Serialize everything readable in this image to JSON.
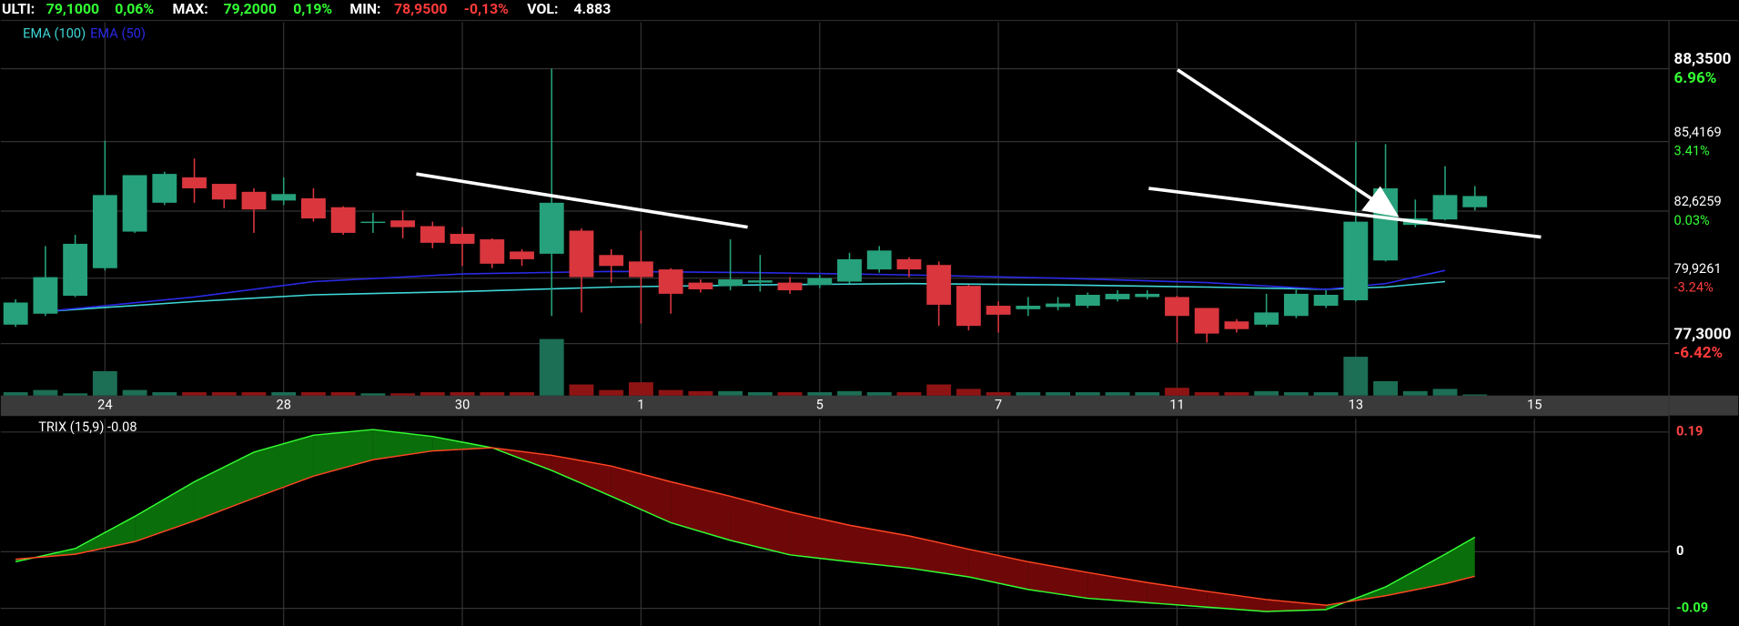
{
  "header": {
    "last_label": "ULTI:",
    "last": "79,1000",
    "last_change": "0,06%",
    "max_label": "MAX:",
    "max": "79,2000",
    "max_change": "0,19%",
    "min_label": "MIN:",
    "min": "78,9500",
    "min_change": "-0,13%",
    "vol_label": "VOL:",
    "vol": "4.883"
  },
  "chart_data": [
    {
      "type": "candlestick",
      "up_color": "#26a17b",
      "down_color": "#d9363e",
      "volume_up_color": "#1c6e55",
      "volume_down_color": "#8e1414",
      "open": [
        78.06,
        78.5,
        79.22,
        80.33,
        81.8,
        82.96,
        83.98,
        83.72,
        83.4,
        83.05,
        83.14,
        82.78,
        82.16,
        82.25,
        82.02,
        81.71,
        81.49,
        81.0,
        80.91,
        81.84,
        80.86,
        80.6,
        80.28,
        79.75,
        79.62,
        79.75,
        79.75,
        79.66,
        79.79,
        80.28,
        80.69,
        80.46,
        79.62,
        78.82,
        78.68,
        78.77,
        78.82,
        79.08,
        79.17,
        79.17,
        78.73,
        78.19,
        78.06,
        78.41,
        78.82,
        79.04,
        80.64,
        82.07,
        82.29,
        82.78
      ],
      "high": [
        79.08,
        81.22,
        81.67,
        85.45,
        84.07,
        84.21,
        84.74,
        83.72,
        83.54,
        83.98,
        83.54,
        82.82,
        82.56,
        82.65,
        82.2,
        81.98,
        81.53,
        81.09,
        88.35,
        81.93,
        81.09,
        81.84,
        80.33,
        79.88,
        81.49,
        80.86,
        79.97,
        80.06,
        80.95,
        81.22,
        80.77,
        80.6,
        79.66,
        78.99,
        79.17,
        79.17,
        79.35,
        79.44,
        79.44,
        79.22,
        78.73,
        78.28,
        79.3,
        79.53,
        79.44,
        85.41,
        85.32,
        83.09,
        84.43,
        83.63
      ],
      "low": [
        77.97,
        78.41,
        79.17,
        80.24,
        81.75,
        82.87,
        82.96,
        82.74,
        81.75,
        82.87,
        82.2,
        81.67,
        81.75,
        81.53,
        81.13,
        80.42,
        80.33,
        80.42,
        78.41,
        78.55,
        79.75,
        78.1,
        78.5,
        79.35,
        79.44,
        79.39,
        79.3,
        79.53,
        79.71,
        80.15,
        79.97,
        78.01,
        77.83,
        77.74,
        78.41,
        78.64,
        78.73,
        78.99,
        79.08,
        77.34,
        77.34,
        77.74,
        77.97,
        78.32,
        78.73,
        78.99,
        80.6,
        81.98,
        82.25,
        82.65
      ],
      "close": [
        78.95,
        79.97,
        81.31,
        83.27,
        84.07,
        84.12,
        83.54,
        83.09,
        82.69,
        83.31,
        82.33,
        81.75,
        82.2,
        81.98,
        81.35,
        81.31,
        80.51,
        80.69,
        82.96,
        79.97,
        80.42,
        79.97,
        79.3,
        79.48,
        79.88,
        79.84,
        79.44,
        79.93,
        80.69,
        81.04,
        80.28,
        78.86,
        78.01,
        78.46,
        78.82,
        78.91,
        79.26,
        79.3,
        79.3,
        78.41,
        77.7,
        77.88,
        78.55,
        79.3,
        79.26,
        82.2,
        83.54,
        82.33,
        83.27,
        83.23
      ],
      "volume": [
        3,
        5,
        2,
        22,
        5,
        3,
        3,
        3,
        3,
        3,
        3,
        3,
        2,
        2,
        3,
        3,
        3,
        3,
        51,
        10,
        5,
        12,
        5,
        4,
        4,
        3,
        3,
        3,
        4,
        3,
        3,
        10,
        6,
        3,
        3,
        3,
        3,
        3,
        3,
        7,
        3,
        3,
        4,
        3,
        3,
        35,
        13,
        4,
        6,
        1
      ],
      "vlim": [
        0,
        60
      ],
      "ema": [
        {
          "name": "EMA (100)",
          "color": "#3fd6d6",
          "x": [
            1,
            6,
            10,
            15,
            20,
            25,
            30,
            35,
            40,
            44,
            46,
            48
          ],
          "values": [
            78.59,
            78.99,
            79.26,
            79.39,
            79.57,
            79.66,
            79.71,
            79.66,
            79.57,
            79.48,
            79.57,
            79.79
          ]
        },
        {
          "name": "EMA (50)",
          "color": "#2a2ae8",
          "x": [
            1,
            6,
            10,
            15,
            20,
            25,
            30,
            35,
            40,
            44,
            46,
            48
          ],
          "values": [
            78.59,
            79.17,
            79.79,
            80.1,
            80.2,
            80.15,
            80.06,
            79.93,
            79.75,
            79.48,
            79.71,
            80.24
          ]
        }
      ],
      "xlim": [
        -0.5,
        55.5
      ],
      "xticks": [
        {
          "value": 3,
          "label": "24"
        },
        {
          "value": 9,
          "label": "28"
        },
        {
          "value": 15,
          "label": "30"
        },
        {
          "value": 21,
          "label": "1"
        },
        {
          "value": 27,
          "label": "5"
        },
        {
          "value": 33,
          "label": "7"
        },
        {
          "value": 39,
          "label": "11"
        },
        {
          "value": 45,
          "label": "13"
        },
        {
          "value": 51,
          "label": "15"
        }
      ],
      "ylim": [
        75.21,
        90.22
      ],
      "yticks": [
        {
          "value": 88.35,
          "label": "88,3500"
        },
        {
          "value": 85.4169,
          "label": "85,4169"
        },
        {
          "value": 82.6259,
          "label": "82,6259"
        },
        {
          "value": 79.9261,
          "label": "79,9261"
        },
        {
          "value": 77.3,
          "label": "77,3000"
        }
      ],
      "ytick_changes": [
        "6.96%",
        "3.41%",
        "0.03%",
        "-3.24%",
        "-6.42%"
      ],
      "ytick_change_colors": [
        "#33ff33",
        "#33ff33",
        "#33ff33",
        "#ff3b3b",
        "#ff3b3b"
      ],
      "ytick_bold": [
        true,
        false,
        false,
        false,
        true
      ],
      "grid": true
    },
    {
      "type": "trix",
      "title": "TRIX (15,9) -0.08",
      "x": [
        0,
        2,
        4,
        6,
        8,
        10,
        12,
        14,
        16,
        18,
        20,
        22,
        24,
        26,
        28,
        30,
        32,
        34,
        36,
        38,
        40,
        42,
        44,
        46,
        48,
        49
      ],
      "series": [
        {
          "color": "#33ff33",
          "values": [
            -0.016,
            0.005,
            0.056,
            0.111,
            0.158,
            0.185,
            0.194,
            0.183,
            0.165,
            0.129,
            0.088,
            0.046,
            0.018,
            -0.005,
            -0.016,
            -0.026,
            -0.04,
            -0.06,
            -0.074,
            -0.081,
            -0.088,
            -0.095,
            -0.092,
            -0.056,
            -0.004,
            0.023
          ]
        },
        {
          "color": "#ff4422",
          "values": [
            -0.012,
            -0.004,
            0.016,
            0.049,
            0.085,
            0.12,
            0.146,
            0.16,
            0.165,
            0.153,
            0.136,
            0.111,
            0.088,
            0.063,
            0.042,
            0.025,
            0.004,
            -0.016,
            -0.033,
            -0.049,
            -0.063,
            -0.076,
            -0.085,
            -0.07,
            -0.051,
            -0.039
          ]
        }
      ],
      "fill_up_color": "#0a6e0a",
      "fill_down_color": "#6e0808",
      "xlim": [
        -0.5,
        55.5
      ],
      "ylim": [
        -0.118,
        0.211
      ],
      "yticks": [
        0.19,
        0,
        -0.09
      ],
      "ytick_colors": [
        "#ff4444",
        "#ffffff",
        "#33ff33"
      ],
      "grid": true
    }
  ]
}
